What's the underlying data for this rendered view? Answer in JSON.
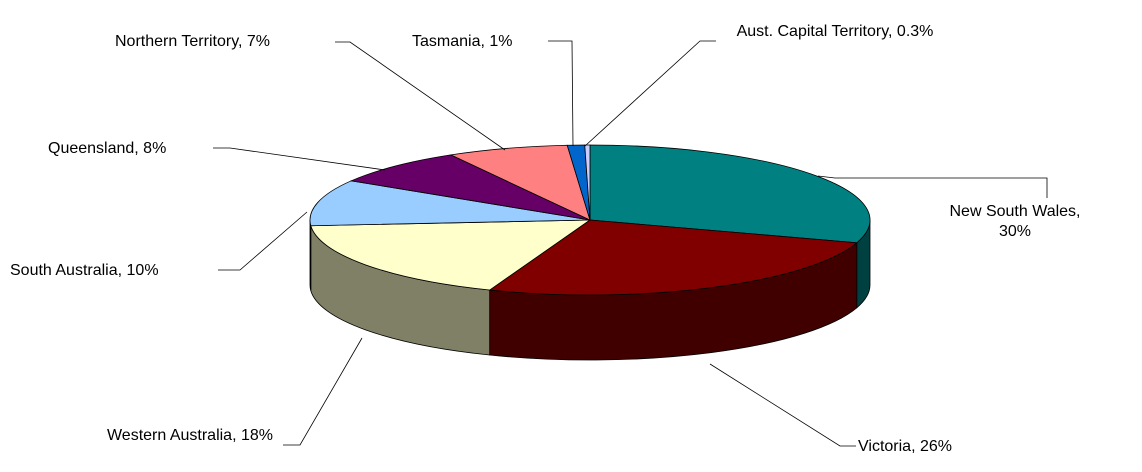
{
  "chart_data": {
    "type": "pie3d",
    "categories": [
      "New South Wales",
      "Victoria",
      "Western Australia",
      "South Australia",
      "Queensland",
      "Northern Territory",
      "Tasmania",
      "Aust. Capital Territory"
    ],
    "values": [
      30,
      26,
      18,
      10,
      8,
      7,
      1,
      0.3
    ],
    "value_labels": [
      "New South Wales, 30%",
      "Victoria, 26%",
      "Western Australia, 18%",
      "South Australia, 10%",
      "Queensland, 8%",
      "Northern Territory, 7%",
      "Tasmania, 1%",
      "Aust. Capital Territory, 0.3%"
    ],
    "colors": [
      "#008080",
      "#800000",
      "#ffffcc",
      "#99ccff",
      "#660066",
      "#ff8080",
      "#0066cc",
      "#ccccff"
    ]
  }
}
